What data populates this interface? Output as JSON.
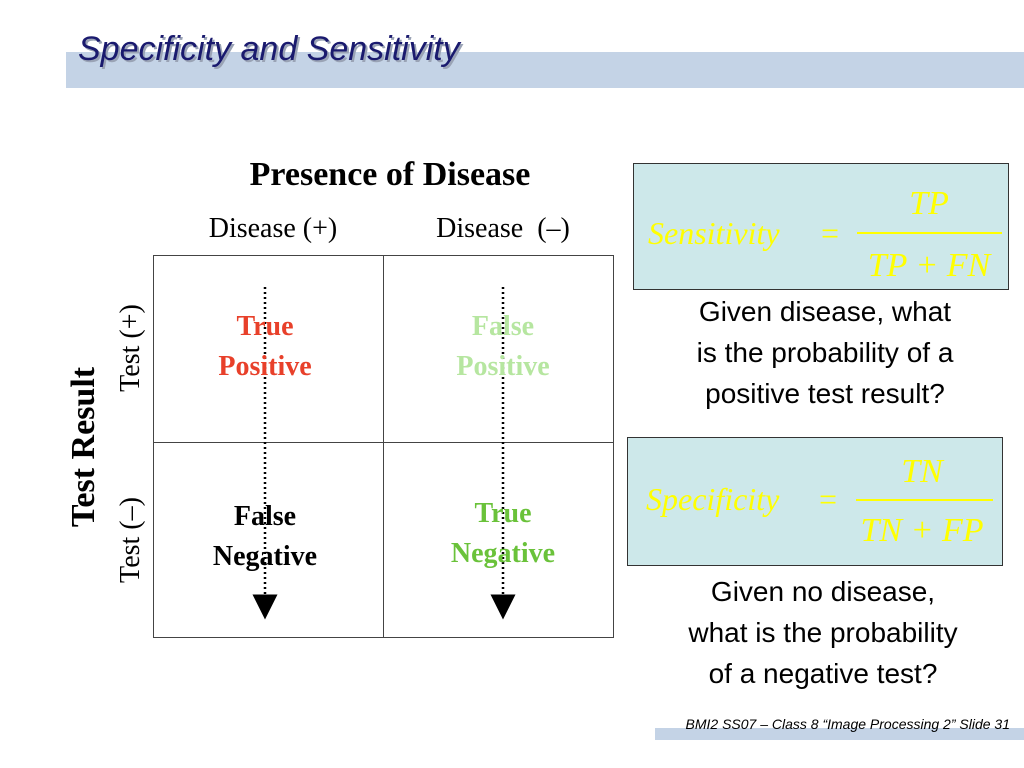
{
  "slide": {
    "title": "Specificity and Sensitivity",
    "footer": "BMI2 SS07 – Class 8 “Image Processing 2” Slide 31"
  },
  "table": {
    "top_header": "Presence of Disease",
    "col_headers": [
      "Disease (+)",
      "Disease  (–)"
    ],
    "side_header": "Test Result",
    "row_headers": [
      "Test (+)",
      "Test (–)"
    ],
    "cells": {
      "tp": {
        "line1": "True",
        "line2": "Positive",
        "color": "#e8402a"
      },
      "fp": {
        "line1": "False",
        "line2": "Positive",
        "color": "#b6e6a0"
      },
      "fn": {
        "line1": "False",
        "line2": "Negative",
        "color": "#000000"
      },
      "tn": {
        "line1": "True",
        "line2": "Negative",
        "color": "#6ac23a"
      }
    }
  },
  "sensitivity": {
    "lhs": "Sensitivity",
    "eq": "=",
    "numerator": "TP",
    "denominator": "TP + FN",
    "caption": [
      "Given disease, what",
      "is the probability of a",
      "positive test result?"
    ]
  },
  "specificity": {
    "lhs": "Specificity",
    "eq": "=",
    "numerator": "TN",
    "denominator": "TN + FP",
    "caption": [
      "Given no disease,",
      "what is the probability",
      "of a negative test?"
    ]
  },
  "colors": {
    "formula_text": "#ffff00",
    "formula_bg": "#cde8ea",
    "title_bar": "#c4d3e6",
    "title_text": "#1a1a6e"
  }
}
